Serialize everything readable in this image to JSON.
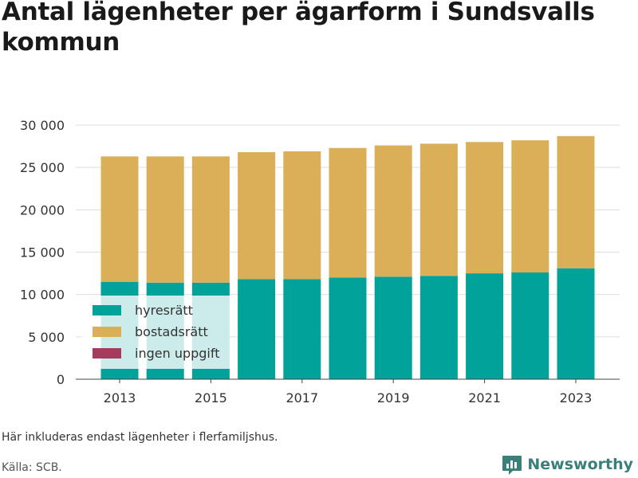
{
  "title": "Antal lägenheter per ägarform i Sundsvalls kommun",
  "note": "Här inkluderas endast lägenheter i flerfamiljshus.",
  "source": "Källa: SCB.",
  "brand": {
    "name": "Newsworthy",
    "color": "#3a7f7a"
  },
  "chart_data": {
    "type": "bar",
    "stacked": true,
    "categories": [
      2013,
      2014,
      2015,
      2016,
      2017,
      2018,
      2019,
      2020,
      2021,
      2022,
      2023
    ],
    "x_ticks": [
      "2013",
      "2015",
      "2017",
      "2019",
      "2021",
      "2023"
    ],
    "series": [
      {
        "name": "hyresrätt",
        "color": "#00a29a",
        "values": [
          11500,
          11400,
          11400,
          11800,
          11800,
          12000,
          12100,
          12200,
          12500,
          12600,
          13100
        ]
      },
      {
        "name": "bostadsrätt",
        "color": "#dbae58",
        "values": [
          14800,
          14900,
          14900,
          15000,
          15100,
          15300,
          15500,
          15600,
          15500,
          15600,
          15600
        ]
      },
      {
        "name": "ingen uppgift",
        "color": "#a53b5d",
        "values": [
          0,
          0,
          0,
          0,
          0,
          0,
          0,
          0,
          0,
          0,
          0
        ]
      }
    ],
    "ylim": [
      0,
      30000
    ],
    "y_ticks": [
      "0",
      "5 000",
      "10 000",
      "15 000",
      "20 000",
      "25 000",
      "30 000"
    ],
    "y_tick_values": [
      0,
      5000,
      10000,
      15000,
      20000,
      25000,
      30000
    ],
    "grid": true,
    "legend_position": "bottom-left inside"
  }
}
